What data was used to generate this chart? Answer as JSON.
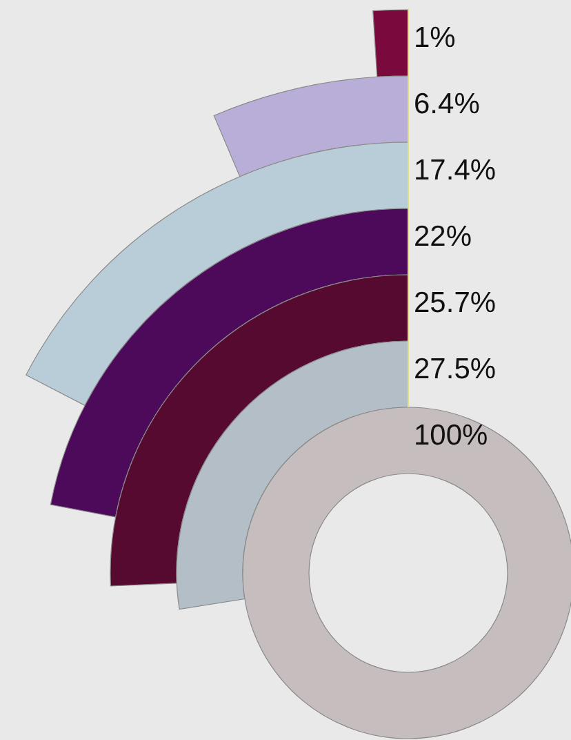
{
  "chart_data": {
    "type": "other",
    "categories": [
      null,
      null,
      null,
      null,
      null,
      null,
      null
    ],
    "values": [
      1,
      6.4,
      17.4,
      22,
      25.7,
      27.5,
      100
    ],
    "value_labels": [
      "1%",
      "6.4%",
      "17.4%",
      "22%",
      "25.7%",
      "27.5%",
      "100%"
    ],
    "colors": [
      "#7a0a3e",
      "#b8aed8",
      "#b9cdd9",
      "#4e0a5a",
      "#560a30",
      "#b3bec7",
      "#c6bebe"
    ]
  }
}
